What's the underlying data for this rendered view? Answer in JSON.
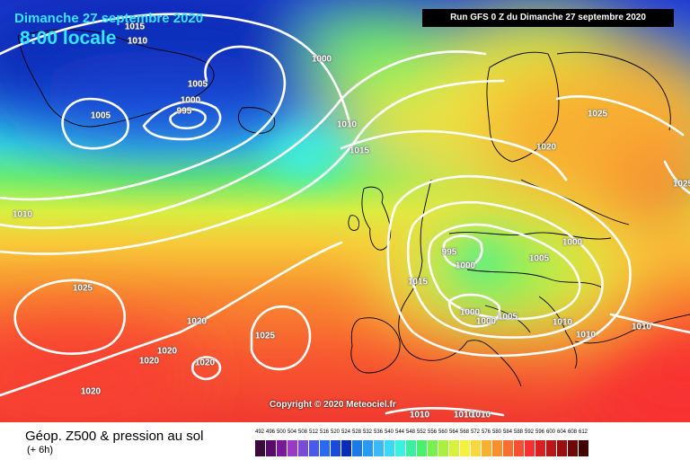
{
  "header": {
    "date": "Dimanche 27 septembre 2020",
    "time": "8:00 locale",
    "run": "Run GFS 0 Z du Dimanche 27 septembre 2020"
  },
  "copyright": "Copyright © 2020 Meteociel.fr",
  "footer": {
    "title": "Géop. Z500 & pression au sol",
    "subtitle": "(+ 6h)"
  },
  "legend": {
    "values": [
      "492",
      "496",
      "500",
      "504",
      "508",
      "512",
      "516",
      "520",
      "524",
      "528",
      "532",
      "536",
      "540",
      "544",
      "548",
      "552",
      "556",
      "560",
      "564",
      "568",
      "572",
      "576",
      "580",
      "584",
      "588",
      "592",
      "596",
      "600",
      "604",
      "608",
      "612"
    ],
    "colors": [
      "#3a0a3a",
      "#5a0a6a",
      "#7a1a9a",
      "#9a3ac0",
      "#7a4ad8",
      "#4a5ae8",
      "#2a6af0",
      "#1a4ad8",
      "#0a2ab8",
      "#1a7ae8",
      "#2a9af0",
      "#3ab8f8",
      "#3ad8f8",
      "#3af0e0",
      "#3af0a0",
      "#4af070",
      "#7af050",
      "#aaf040",
      "#d8f040",
      "#f8f040",
      "#f8d840",
      "#f8b030",
      "#f89030",
      "#f87030",
      "#f85030",
      "#f83030",
      "#d82020",
      "#b81818",
      "#981010",
      "#700808",
      "#400404"
    ]
  },
  "isobar_labels": [
    {
      "text": "1015"
    },
    {
      "text": "1010"
    },
    {
      "text": "1000"
    },
    {
      "text": "1005"
    },
    {
      "text": "1000"
    },
    {
      "text": "995"
    },
    {
      "text": "1005"
    },
    {
      "text": "1010"
    },
    {
      "text": "1015"
    },
    {
      "text": "1010"
    },
    {
      "text": "1025"
    },
    {
      "text": "1020"
    },
    {
      "text": "1025"
    },
    {
      "text": "995"
    },
    {
      "text": "1000"
    },
    {
      "text": "1000"
    },
    {
      "text": "1005"
    },
    {
      "text": "1015"
    },
    {
      "text": "1000"
    },
    {
      "text": "1000"
    },
    {
      "text": "1005"
    },
    {
      "text": "1010"
    },
    {
      "text": "1010"
    },
    {
      "text": "1010"
    },
    {
      "text": "1025"
    },
    {
      "text": "1020"
    },
    {
      "text": "1020"
    },
    {
      "text": "1020"
    },
    {
      "text": "1020"
    },
    {
      "text": "1025"
    },
    {
      "text": "1020"
    },
    {
      "text": "1010"
    },
    {
      "text": "1010"
    },
    {
      "text": "1010"
    }
  ]
}
